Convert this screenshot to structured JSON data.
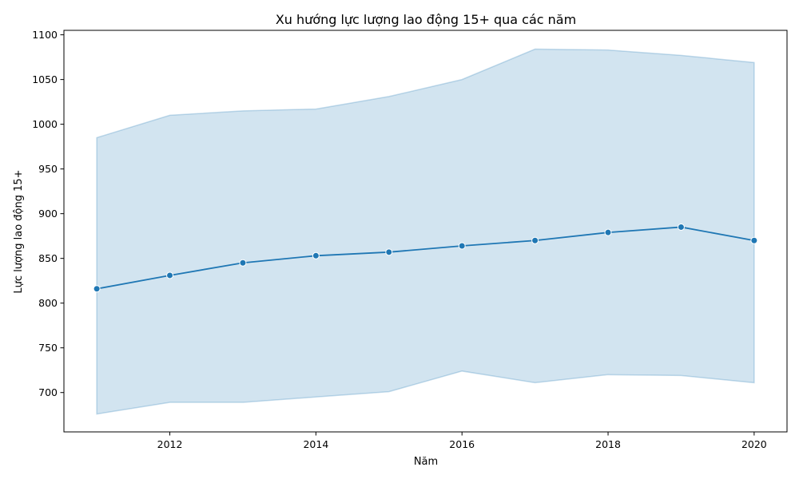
{
  "chart_data": {
    "type": "line",
    "title": "Xu hướng lực lượng lao động 15+ qua các năm",
    "xlabel": "Năm",
    "ylabel": "Lực lượng lao động 15+",
    "x": [
      2011,
      2012,
      2013,
      2014,
      2015,
      2016,
      2017,
      2018,
      2019,
      2020
    ],
    "series": [
      {
        "values": [
          816,
          831,
          845,
          853,
          857,
          864,
          870,
          879,
          885,
          870
        ],
        "band_upper": [
          985,
          1010,
          1015,
          1017,
          1031,
          1050,
          1084,
          1083,
          1077,
          1069
        ],
        "band_lower": [
          676,
          689,
          689,
          695,
          701,
          724,
          711,
          720,
          719,
          711
        ],
        "color": "#1f77b4",
        "band_color": "#1f77b4"
      }
    ],
    "xticks": [
      2012,
      2014,
      2016,
      2018,
      2020
    ],
    "yticks": [
      700,
      750,
      800,
      850,
      900,
      950,
      1000,
      1050,
      1100
    ],
    "xlim": [
      2010.55,
      2020.45
    ],
    "ylim": [
      656,
      1105
    ],
    "grid": false,
    "legend": "none"
  }
}
